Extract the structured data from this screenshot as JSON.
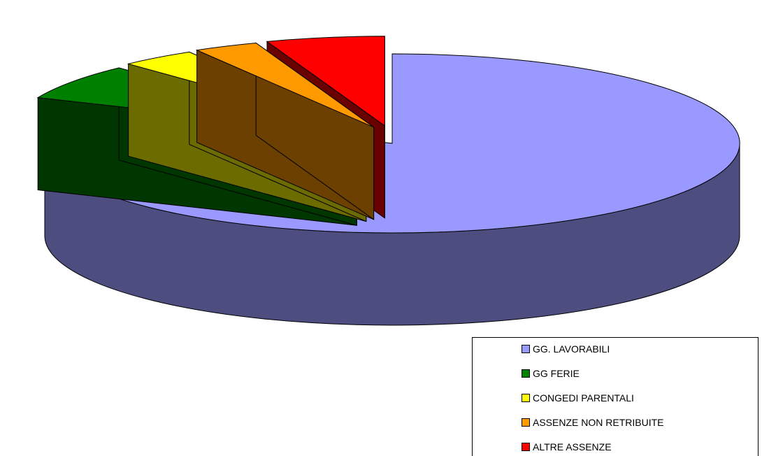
{
  "chart_data": {
    "type": "pie",
    "style": "3d-exploded",
    "categories": [
      "GG. LAVORABILI",
      "GG FERIE",
      "CONGEDI PARENTALI",
      "ASSENZE NON RETRIBUITE",
      "ALTRE ASSENZE"
    ],
    "values": [
      81.5,
      6.5,
      3.5,
      3.0,
      5.5
    ],
    "value_unit": "percent",
    "colors": [
      "#9999ff",
      "#008000",
      "#ffff00",
      "#ff9900",
      "#ff0000"
    ],
    "legend_position": "bottom-right",
    "exploded_slices": [
      "GG FERIE",
      "CONGEDI PARENTALI",
      "ASSENZE NON RETRIBUITE",
      "ALTRE ASSENZE"
    ]
  }
}
